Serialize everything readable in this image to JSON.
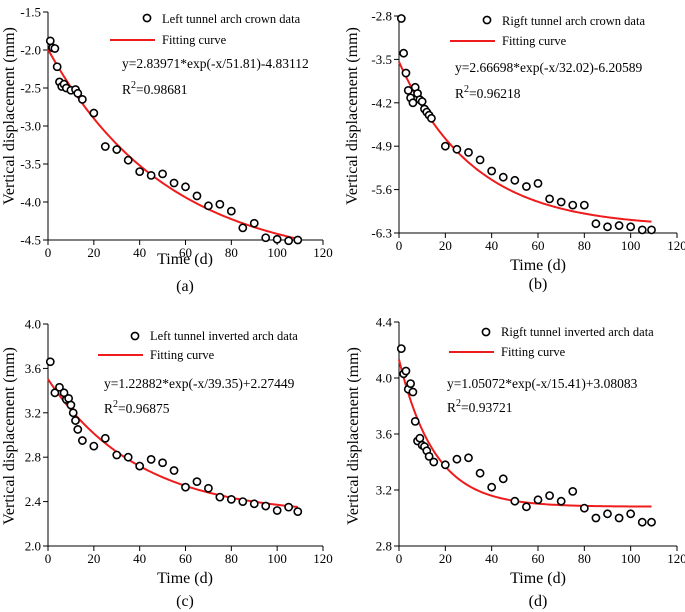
{
  "figure": {
    "width": 685,
    "height": 612
  },
  "chart_data": [
    {
      "type": "scatter",
      "panel_label": "(a)",
      "xlabel": "Time (d)",
      "ylabel": "Vertical displacement (mm)",
      "xlim": [
        0,
        120
      ],
      "ylim": [
        -4.5,
        -1.5
      ],
      "x_ticks": [
        0,
        20,
        40,
        60,
        80,
        100,
        120
      ],
      "y_ticks": [
        -1.5,
        -2.0,
        -2.5,
        -3.0,
        -3.5,
        -4.0,
        -4.5
      ],
      "y_tick_labels": [
        "-1.5",
        "-2.0",
        "-2.5",
        "-3.0",
        "-3.5",
        "-4.0",
        "-4.5"
      ],
      "legend": {
        "data_label": "Left tunnel arch crown data",
        "fit_label": "Fitting curve"
      },
      "equation": "y=2.83971*exp(-x/51.81)-4.83112",
      "r2_value": "=0.98681",
      "fit": {
        "A": 2.83971,
        "t": 51.81,
        "y0": -4.83112,
        "x_start": 0,
        "x_end": 109
      },
      "x": [
        1,
        2,
        3,
        4,
        5,
        6,
        7,
        8,
        10,
        12,
        13,
        15,
        20,
        25,
        30,
        35,
        40,
        45,
        50,
        55,
        60,
        65,
        70,
        75,
        80,
        85,
        90,
        95,
        100,
        105,
        109
      ],
      "y": [
        -1.88,
        -1.97,
        -1.98,
        -2.22,
        -2.42,
        -2.48,
        -2.45,
        -2.5,
        -2.53,
        -2.52,
        -2.57,
        -2.65,
        -2.83,
        -3.27,
        -3.31,
        -3.45,
        -3.6,
        -3.65,
        -3.63,
        -3.75,
        -3.8,
        -3.92,
        -4.05,
        -4.03,
        -4.12,
        -4.34,
        -4.28,
        -4.47,
        -4.49,
        -4.51,
        -4.5
      ]
    },
    {
      "type": "scatter",
      "panel_label": "(b)",
      "xlabel": "Time (d)",
      "ylabel": "Vertical displacement (mm)",
      "xlim": [
        0,
        120
      ],
      "ylim": [
        -6.3,
        -2.8
      ],
      "x_ticks": [
        0,
        20,
        40,
        60,
        80,
        100,
        120
      ],
      "y_ticks": [
        -2.8,
        -3.5,
        -4.2,
        -4.9,
        -5.6,
        -6.3
      ],
      "y_tick_labels": [
        "-2.8",
        "-3.5",
        "-4.2",
        "-4.9",
        "-5.6",
        "-6.3"
      ],
      "legend": {
        "data_label": "Rigft tunnel arch crown data",
        "fit_label": "Fitting curve"
      },
      "equation": "y=2.66698*exp(-x/32.02)-6.20589",
      "r2_value": "=0.96218",
      "fit": {
        "A": 2.66698,
        "t": 32.02,
        "y0": -6.20589,
        "x_start": 0,
        "x_end": 109
      },
      "x": [
        1,
        2,
        3,
        4,
        5,
        6,
        7,
        8,
        9,
        10,
        11,
        12,
        13,
        14,
        20,
        25,
        30,
        35,
        40,
        45,
        50,
        55,
        60,
        65,
        70,
        75,
        80,
        85,
        90,
        95,
        100,
        105,
        109
      ],
      "y": [
        -2.84,
        -3.4,
        -3.72,
        -4.0,
        -4.12,
        -4.2,
        -3.95,
        -4.05,
        -4.15,
        -4.18,
        -4.3,
        -4.35,
        -4.4,
        -4.45,
        -4.9,
        -4.95,
        -5.0,
        -5.12,
        -5.3,
        -5.4,
        -5.45,
        -5.55,
        -5.5,
        -5.75,
        -5.8,
        -5.85,
        -5.85,
        -6.15,
        -6.2,
        -6.18,
        -6.2,
        -6.25,
        -6.25
      ]
    },
    {
      "type": "scatter",
      "panel_label": "(c)",
      "xlabel": "Time (d)",
      "ylabel": "Vertical displacement (mm)",
      "xlim": [
        0,
        120
      ],
      "ylim": [
        2.0,
        4.0
      ],
      "x_ticks": [
        0,
        20,
        40,
        60,
        80,
        100,
        120
      ],
      "y_ticks": [
        2.0,
        2.4,
        2.8,
        3.2,
        3.6,
        4.0
      ],
      "y_tick_labels": [
        "2.0",
        "2.4",
        "2.8",
        "3.2",
        "3.6",
        "4.0"
      ],
      "legend": {
        "data_label": "Left tunnel inverted arch data",
        "fit_label": "Fitting curve"
      },
      "equation": "y=1.22882*exp(-x/39.35)+2.27449",
      "r2_value": "=0.96875",
      "fit": {
        "A": 1.22882,
        "t": 39.35,
        "y0": 2.27449,
        "x_start": 0,
        "x_end": 109
      },
      "x": [
        1,
        3,
        5,
        7,
        8,
        9,
        10,
        11,
        12,
        13,
        15,
        20,
        25,
        30,
        35,
        40,
        45,
        50,
        55,
        60,
        65,
        70,
        75,
        80,
        85,
        90,
        95,
        100,
        105,
        109
      ],
      "y": [
        3.66,
        3.38,
        3.43,
        3.38,
        3.32,
        3.33,
        3.27,
        3.2,
        3.13,
        3.05,
        2.95,
        2.9,
        2.97,
        2.82,
        2.8,
        2.72,
        2.78,
        2.75,
        2.68,
        2.53,
        2.58,
        2.52,
        2.44,
        2.42,
        2.4,
        2.38,
        2.36,
        2.32,
        2.35,
        2.31
      ]
    },
    {
      "type": "scatter",
      "panel_label": "(d)",
      "xlabel": "Time (d)",
      "ylabel": "Vertical displacement (mm)",
      "xlim": [
        0,
        120
      ],
      "ylim": [
        2.8,
        4.4
      ],
      "x_ticks": [
        0,
        20,
        40,
        60,
        80,
        100,
        120
      ],
      "y_ticks": [
        2.8,
        3.2,
        3.6,
        4.0,
        4.4
      ],
      "y_tick_labels": [
        "2.8",
        "3.2",
        "3.6",
        "4.0",
        "4.4"
      ],
      "legend": {
        "data_label": "Rigft tunnel inverted arch data",
        "fit_label": "Fitting curve"
      },
      "equation": "y=1.05072*exp(-x/15.41)+3.08083",
      "r2_value": "=0.93721",
      "fit": {
        "A": 1.05072,
        "t": 15.41,
        "y0": 3.08083,
        "x_start": 0,
        "x_end": 109
      },
      "x": [
        1,
        2,
        3,
        4,
        5,
        6,
        7,
        8,
        9,
        10,
        11,
        12,
        13,
        15,
        20,
        25,
        30,
        35,
        40,
        45,
        50,
        55,
        60,
        65,
        70,
        75,
        80,
        85,
        90,
        95,
        100,
        105,
        109
      ],
      "y": [
        4.21,
        4.03,
        4.05,
        3.92,
        3.96,
        3.9,
        3.69,
        3.55,
        3.57,
        3.52,
        3.51,
        3.48,
        3.44,
        3.4,
        3.38,
        3.42,
        3.43,
        3.32,
        3.22,
        3.28,
        3.12,
        3.08,
        3.13,
        3.16,
        3.12,
        3.19,
        3.07,
        3.0,
        3.03,
        3.0,
        3.03,
        2.97,
        2.97
      ]
    }
  ]
}
